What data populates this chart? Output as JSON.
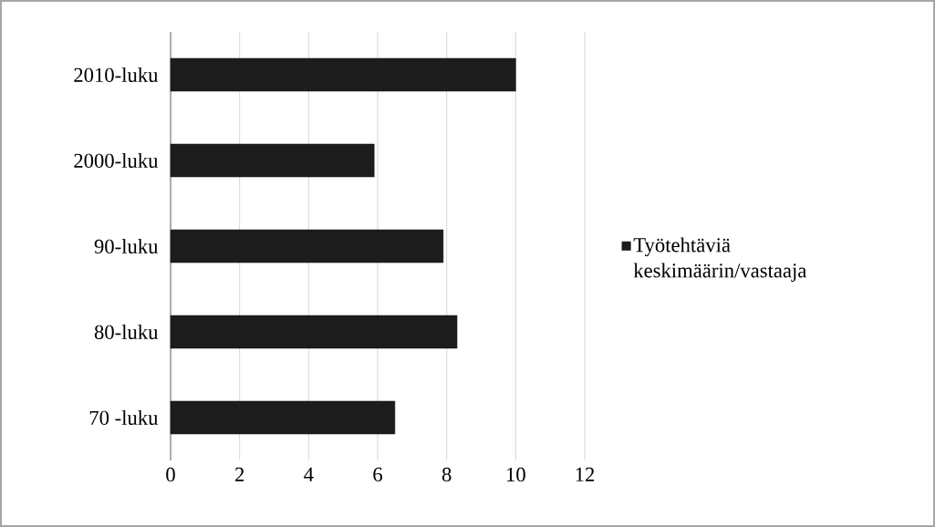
{
  "chart_data": {
    "type": "bar",
    "orientation": "horizontal",
    "categories": [
      "2010-luku",
      "2000-luku",
      "90-luku",
      "80-luku",
      "70 -luku"
    ],
    "series": [
      {
        "name": "Työtehtäviä keskimäärin/vastaaja",
        "color": "#1c1c1c",
        "values": [
          10,
          5.9,
          7.9,
          8.3,
          6.5
        ]
      }
    ],
    "xlim": [
      0,
      12
    ],
    "xticks": [
      0,
      2,
      4,
      6,
      8,
      10,
      12
    ],
    "grid": "x",
    "legend": "right"
  }
}
